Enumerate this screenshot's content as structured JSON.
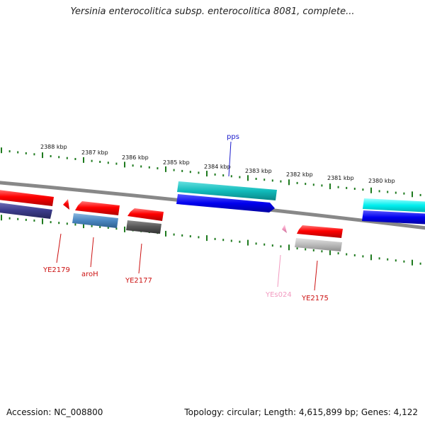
{
  "title": "Yersinia enterocolitica subsp. enterocolitica 8081, complete...",
  "footer": {
    "accession": "Accession: NC_008800",
    "topology": "Topology: circular; Length: 4,615,899 bp; Genes: 4,122"
  },
  "ruler": {
    "unit": "kbp",
    "ticks": [
      "2388 kbp",
      "2387 kbp",
      "2386 kbp",
      "2385 kbp",
      "2384 kbp",
      "2383 kbp",
      "2382 kbp",
      "2381 kbp",
      "2380 kbp"
    ]
  },
  "genes": [
    {
      "label": "pps",
      "color": "#1a1acc"
    },
    {
      "label": "YE2179",
      "color": "#cc1111"
    },
    {
      "label": "aroH",
      "color": "#cc1111"
    },
    {
      "label": "YE2177",
      "color": "#cc1111"
    },
    {
      "label": "YEs024",
      "color": "#f29ac0"
    },
    {
      "label": "YE2175",
      "color": "#cc1111"
    }
  ],
  "colors": {
    "backbone": "#888888",
    "tick": "#1e7a1e",
    "forward_red": "#ff0000",
    "blue": "#0000ee",
    "teal": "#11bbbb",
    "cyan": "#00eeee",
    "navy": "#3c3c8c",
    "steel": "#4a86c0",
    "dark_gray": "#555555",
    "light_gray": "#bbbbbb",
    "pink": "#f29ac0"
  }
}
